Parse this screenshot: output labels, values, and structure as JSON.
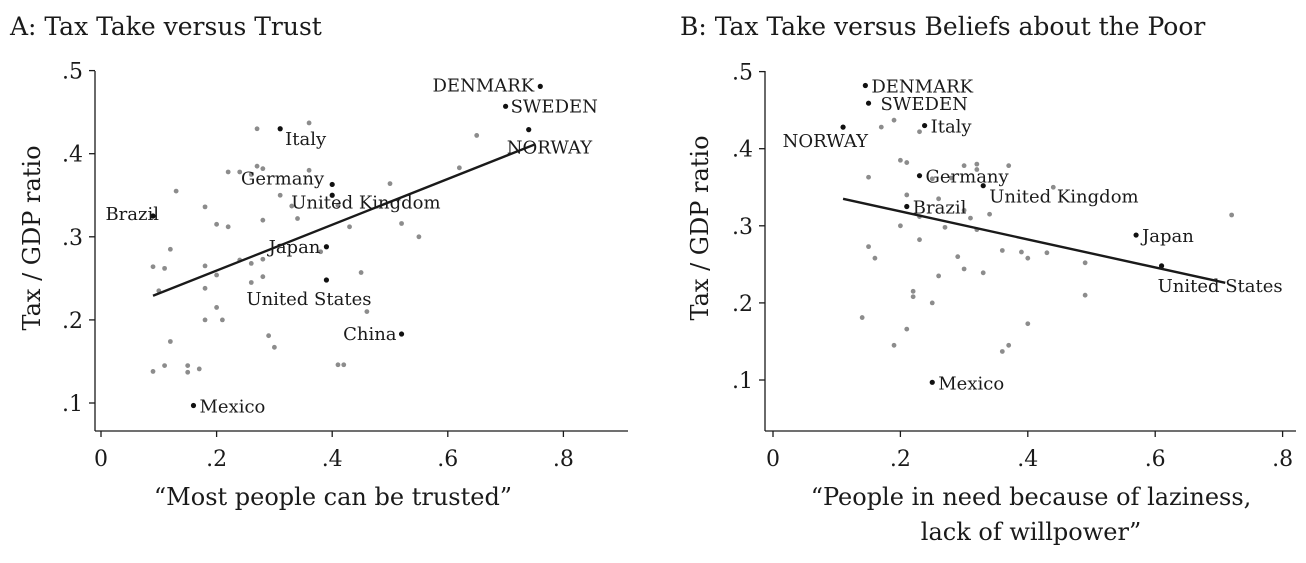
{
  "chart_data": [
    {
      "type": "scatter",
      "title": "A: Tax Take versus Trust",
      "xlabel": "“Most people can be trusted”",
      "ylabel": "Tax / GDP ratio",
      "xlim": [
        0,
        0.9
      ],
      "ylim": [
        0.08,
        0.51
      ],
      "xticks": [
        0,
        0.2,
        0.4,
        0.6,
        0.8
      ],
      "xtick_labels": [
        "0",
        ".2",
        ".4",
        ".6",
        ".8"
      ],
      "yticks": [
        0.1,
        0.2,
        0.3,
        0.4,
        0.5
      ],
      "ytick_labels": [
        ".1",
        ".2",
        ".3",
        ".4",
        ".5"
      ],
      "grid": false,
      "labeled_points": [
        {
          "label": "DENMARK",
          "x": 0.76,
          "y": 0.481
        },
        {
          "label": "SWEDEN",
          "x": 0.7,
          "y": 0.457
        },
        {
          "label": "NORWAY",
          "x": 0.74,
          "y": 0.429
        },
        {
          "label": "Italy",
          "x": 0.31,
          "y": 0.43
        },
        {
          "label": "Germany",
          "x": 0.4,
          "y": 0.363
        },
        {
          "label": "United Kingdom",
          "x": 0.4,
          "y": 0.35
        },
        {
          "label": "Brazil",
          "x": 0.09,
          "y": 0.325
        },
        {
          "label": "Japan",
          "x": 0.39,
          "y": 0.288
        },
        {
          "label": "United States",
          "x": 0.39,
          "y": 0.248
        },
        {
          "label": "China",
          "x": 0.52,
          "y": 0.183
        },
        {
          "label": "Mexico",
          "x": 0.16,
          "y": 0.097
        }
      ],
      "other_points": [
        {
          "x": 0.27,
          "y": 0.43
        },
        {
          "x": 0.36,
          "y": 0.437
        },
        {
          "x": 0.65,
          "y": 0.422
        },
        {
          "x": 0.62,
          "y": 0.383
        },
        {
          "x": 0.27,
          "y": 0.385
        },
        {
          "x": 0.22,
          "y": 0.378
        },
        {
          "x": 0.24,
          "y": 0.378
        },
        {
          "x": 0.28,
          "y": 0.382
        },
        {
          "x": 0.26,
          "y": 0.375
        },
        {
          "x": 0.36,
          "y": 0.38
        },
        {
          "x": 0.31,
          "y": 0.35
        },
        {
          "x": 0.5,
          "y": 0.364
        },
        {
          "x": 0.13,
          "y": 0.355
        },
        {
          "x": 0.18,
          "y": 0.336
        },
        {
          "x": 0.33,
          "y": 0.337
        },
        {
          "x": 0.41,
          "y": 0.338
        },
        {
          "x": 0.52,
          "y": 0.316
        },
        {
          "x": 0.2,
          "y": 0.315
        },
        {
          "x": 0.22,
          "y": 0.312
        },
        {
          "x": 0.28,
          "y": 0.32
        },
        {
          "x": 0.34,
          "y": 0.322
        },
        {
          "x": 0.43,
          "y": 0.312
        },
        {
          "x": 0.12,
          "y": 0.285
        },
        {
          "x": 0.55,
          "y": 0.3
        },
        {
          "x": 0.24,
          "y": 0.272
        },
        {
          "x": 0.26,
          "y": 0.268
        },
        {
          "x": 0.28,
          "y": 0.273
        },
        {
          "x": 0.09,
          "y": 0.264
        },
        {
          "x": 0.11,
          "y": 0.262
        },
        {
          "x": 0.18,
          "y": 0.265
        },
        {
          "x": 0.2,
          "y": 0.254
        },
        {
          "x": 0.28,
          "y": 0.252
        },
        {
          "x": 0.38,
          "y": 0.282
        },
        {
          "x": 0.45,
          "y": 0.257
        },
        {
          "x": 0.1,
          "y": 0.235
        },
        {
          "x": 0.18,
          "y": 0.238
        },
        {
          "x": 0.26,
          "y": 0.245
        },
        {
          "x": 0.2,
          "y": 0.215
        },
        {
          "x": 0.46,
          "y": 0.21
        },
        {
          "x": 0.18,
          "y": 0.2
        },
        {
          "x": 0.21,
          "y": 0.2
        },
        {
          "x": 0.12,
          "y": 0.174
        },
        {
          "x": 0.29,
          "y": 0.181
        },
        {
          "x": 0.3,
          "y": 0.167
        },
        {
          "x": 0.09,
          "y": 0.138
        },
        {
          "x": 0.11,
          "y": 0.145
        },
        {
          "x": 0.15,
          "y": 0.145
        },
        {
          "x": 0.15,
          "y": 0.137
        },
        {
          "x": 0.17,
          "y": 0.141
        },
        {
          "x": 0.41,
          "y": 0.146
        },
        {
          "x": 0.42,
          "y": 0.146
        }
      ],
      "fit_line": {
        "x": [
          0.09,
          0.75
        ],
        "y": [
          0.229,
          0.411
        ]
      }
    },
    {
      "type": "scatter",
      "title": "B: Tax Take versus Beliefs about the Poor",
      "xlabel": "“People in need because of laziness,",
      "xlabel_line2": "lack of willpower”",
      "ylabel": "Tax / GDP ratio",
      "xlim": [
        0,
        0.8
      ],
      "ylim": [
        0.06,
        0.51
      ],
      "xticks": [
        0,
        0.2,
        0.4,
        0.6,
        0.8
      ],
      "xtick_labels": [
        "0",
        ".2",
        ".4",
        ".6",
        ".8"
      ],
      "yticks": [
        0.1,
        0.2,
        0.3,
        0.4,
        0.5
      ],
      "ytick_labels": [
        ".1",
        ".2",
        ".3",
        ".4",
        ".5"
      ],
      "grid": false,
      "labeled_points": [
        {
          "label": "DENMARK",
          "x": 0.145,
          "y": 0.482
        },
        {
          "label": "SWEDEN",
          "x": 0.15,
          "y": 0.459
        },
        {
          "label": "Italy",
          "x": 0.238,
          "y": 0.43
        },
        {
          "label": "NORWAY",
          "x": 0.11,
          "y": 0.428
        },
        {
          "label": "Germany",
          "x": 0.23,
          "y": 0.365
        },
        {
          "label": "United Kingdom",
          "x": 0.33,
          "y": 0.352
        },
        {
          "label": "Brazil",
          "x": 0.21,
          "y": 0.325
        },
        {
          "label": "Japan",
          "x": 0.57,
          "y": 0.288
        },
        {
          "label": "United States",
          "x": 0.61,
          "y": 0.248
        },
        {
          "label": "Mexico",
          "x": 0.25,
          "y": 0.097
        }
      ],
      "other_points": [
        {
          "x": 0.19,
          "y": 0.437
        },
        {
          "x": 0.23,
          "y": 0.422
        },
        {
          "x": 0.17,
          "y": 0.428
        },
        {
          "x": 0.2,
          "y": 0.385
        },
        {
          "x": 0.21,
          "y": 0.382
        },
        {
          "x": 0.3,
          "y": 0.378
        },
        {
          "x": 0.32,
          "y": 0.38
        },
        {
          "x": 0.37,
          "y": 0.378
        },
        {
          "x": 0.32,
          "y": 0.373
        },
        {
          "x": 0.15,
          "y": 0.363
        },
        {
          "x": 0.25,
          "y": 0.361
        },
        {
          "x": 0.28,
          "y": 0.362
        },
        {
          "x": 0.44,
          "y": 0.35
        },
        {
          "x": 0.21,
          "y": 0.34
        },
        {
          "x": 0.26,
          "y": 0.335
        },
        {
          "x": 0.3,
          "y": 0.32
        },
        {
          "x": 0.31,
          "y": 0.31
        },
        {
          "x": 0.34,
          "y": 0.315
        },
        {
          "x": 0.23,
          "y": 0.312
        },
        {
          "x": 0.2,
          "y": 0.3
        },
        {
          "x": 0.27,
          "y": 0.298
        },
        {
          "x": 0.32,
          "y": 0.295
        },
        {
          "x": 0.72,
          "y": 0.314
        },
        {
          "x": 0.23,
          "y": 0.282
        },
        {
          "x": 0.36,
          "y": 0.268
        },
        {
          "x": 0.39,
          "y": 0.266
        },
        {
          "x": 0.15,
          "y": 0.273
        },
        {
          "x": 0.16,
          "y": 0.258
        },
        {
          "x": 0.29,
          "y": 0.26
        },
        {
          "x": 0.43,
          "y": 0.265
        },
        {
          "x": 0.3,
          "y": 0.244
        },
        {
          "x": 0.33,
          "y": 0.239
        },
        {
          "x": 0.4,
          "y": 0.258
        },
        {
          "x": 0.49,
          "y": 0.252
        },
        {
          "x": 0.26,
          "y": 0.235
        },
        {
          "x": 0.22,
          "y": 0.215
        },
        {
          "x": 0.22,
          "y": 0.208
        },
        {
          "x": 0.25,
          "y": 0.2
        },
        {
          "x": 0.49,
          "y": 0.21
        },
        {
          "x": 0.14,
          "y": 0.181
        },
        {
          "x": 0.21,
          "y": 0.166
        },
        {
          "x": 0.4,
          "y": 0.173
        },
        {
          "x": 0.19,
          "y": 0.145
        },
        {
          "x": 0.36,
          "y": 0.137
        },
        {
          "x": 0.37,
          "y": 0.145
        }
      ],
      "fit_line": {
        "x": [
          0.11,
          0.71
        ],
        "y": [
          0.335,
          0.226
        ]
      }
    }
  ]
}
